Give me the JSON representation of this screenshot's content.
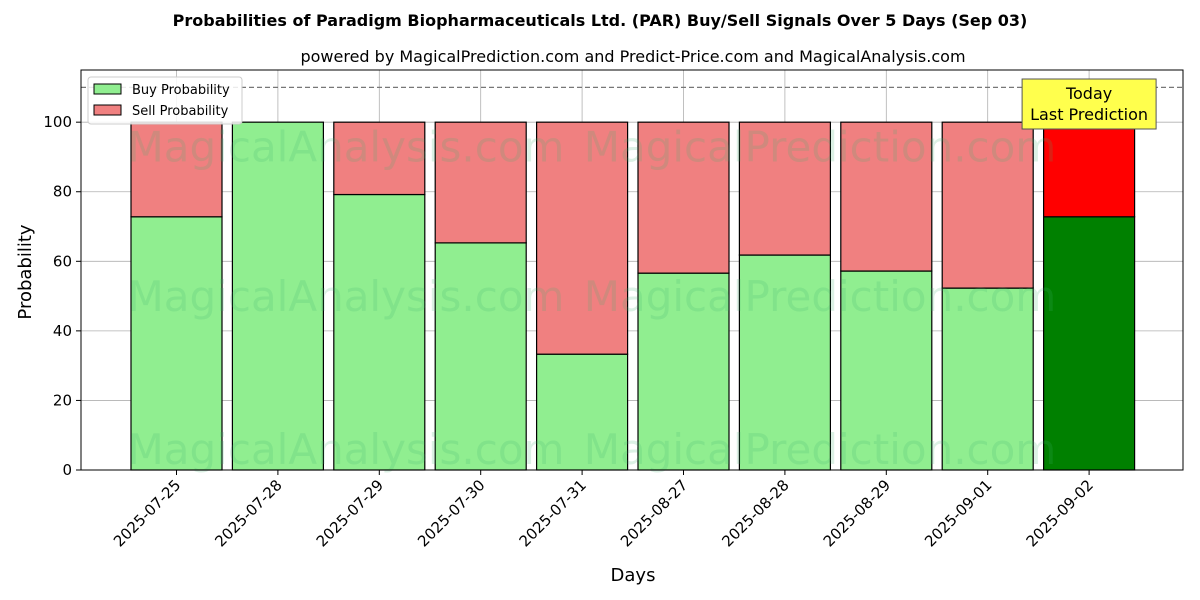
{
  "chart_data": {
    "type": "bar",
    "stacked": true,
    "title": "Probabilities of Paradigm Biopharmaceuticals Ltd. (PAR) Buy/Sell Signals Over 5 Days (Sep 03)",
    "subtitle": "powered by MagicalPrediction.com and Predict-Price.com and MagicalAnalysis.com",
    "xlabel": "Days",
    "ylabel": "Probability",
    "ylim": [
      0,
      115
    ],
    "yticks": [
      0,
      20,
      40,
      60,
      80,
      100
    ],
    "grid": true,
    "legend_position": "top-left",
    "reference_line": 110,
    "categories": [
      "2025-07-25",
      "2025-07-28",
      "2025-07-29",
      "2025-07-30",
      "2025-07-31",
      "2025-08-27",
      "2025-08-28",
      "2025-08-29",
      "2025-09-01",
      "2025-09-02"
    ],
    "series": [
      {
        "name": "Buy Probability",
        "values": [
          72.8,
          100,
          79.2,
          65.3,
          33.3,
          56.6,
          61.8,
          57.2,
          52.3,
          72.8
        ],
        "color": "#90ee90",
        "highlight_color": "#008000"
      },
      {
        "name": "Sell Probability",
        "values": [
          27.2,
          0,
          20.8,
          34.7,
          66.7,
          43.4,
          38.2,
          42.8,
          47.7,
          27.2
        ],
        "color": "#f08080",
        "highlight_color": "#ff0000"
      }
    ],
    "highlight_index": 9,
    "annotation": {
      "lines": [
        "Today",
        "Last Prediction"
      ],
      "color": "#ffff4d"
    },
    "watermarks": [
      "MagicalAnalysis.com",
      "MagicalPrediction.com"
    ]
  }
}
